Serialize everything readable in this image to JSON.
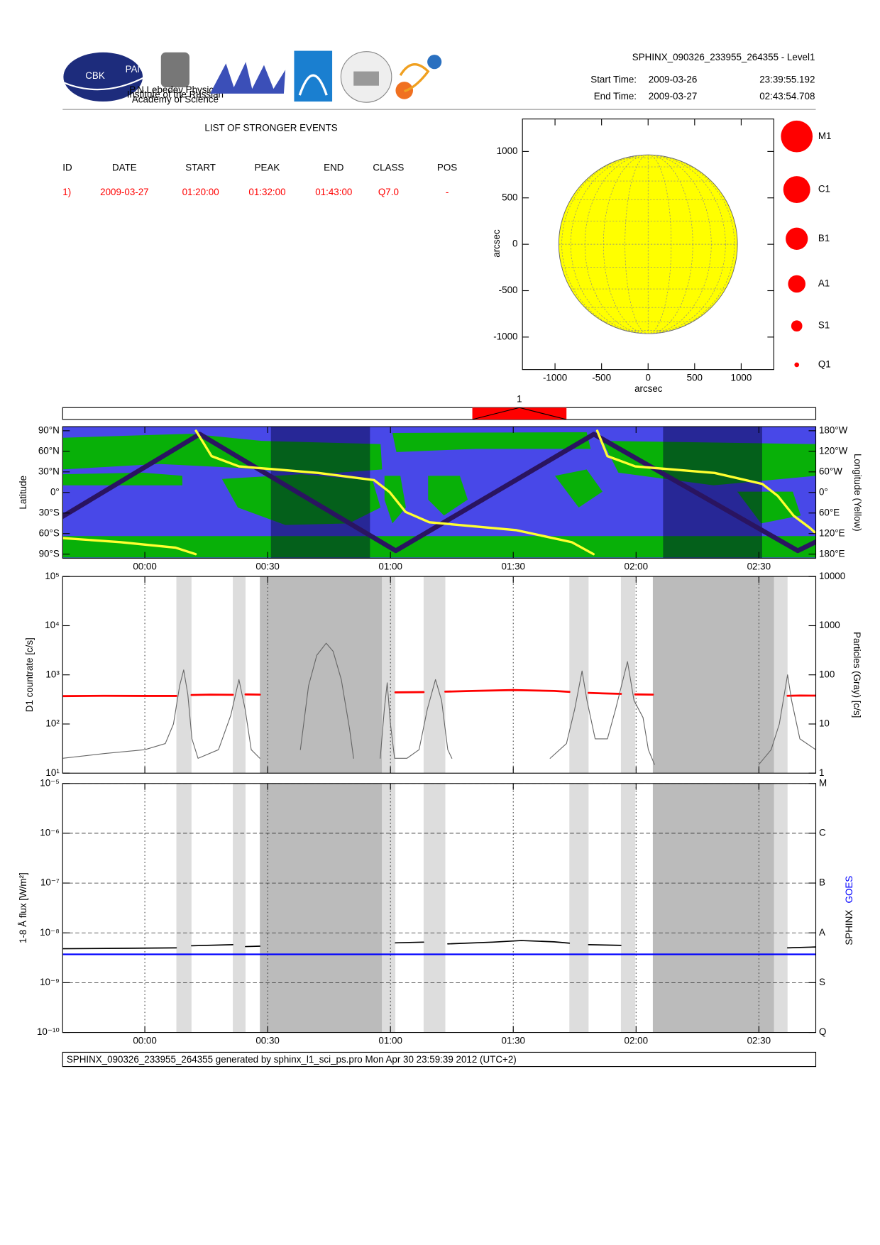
{
  "header": {
    "title": "SPHINX_090326_233955_264355 - Level1",
    "start_label": "Start Time:",
    "start_date": "2009-03-26",
    "start_time": "23:39:55.192",
    "end_label": "End Time:",
    "end_date": "2009-03-27",
    "end_time": "02:43:54.708"
  },
  "logos": {
    "cbk": "CBK",
    "cbk_sub": "PAN",
    "lebedev": [
      "P.N.Lebedev Physical",
      "Institute of the Russian",
      "Academy of Science"
    ]
  },
  "events_table": {
    "title": "LIST OF STRONGER EVENTS",
    "columns": [
      "ID",
      "DATE",
      "START",
      "PEAK",
      "END",
      "CLASS",
      "POS"
    ],
    "rows": [
      [
        "1)",
        "2009-03-27",
        "01:20:00",
        "01:32:00",
        "01:43:00",
        "Q7.0",
        "-"
      ]
    ]
  },
  "class_legend": [
    "M1",
    "C1",
    "B1",
    "A1",
    "S1",
    "Q1"
  ],
  "footer": "SPHINX_090326_233955_264355 generated by sphinx_l1_sci_ps.pro Mon Apr 30 23:59:39 2012 (UTC+2)",
  "chart_data": [
    {
      "type": "disk",
      "xlabel": "arcsec",
      "ylabel": "arcsec",
      "xlim": [
        -1350,
        1350
      ],
      "ylim": [
        -1350,
        1350
      ],
      "xticks": [
        -1000,
        -500,
        0,
        500,
        1000
      ],
      "yticks": [
        -1000,
        -500,
        0,
        500,
        1000
      ],
      "radius": 960,
      "color": "#ffff00"
    },
    {
      "type": "timeline",
      "xlim": [
        -20.08,
        163.9
      ],
      "color": "#ff0000",
      "events": [
        {
          "label": "1",
          "start": 80,
          "end": 103
        }
      ]
    },
    {
      "type": "line",
      "ylabel": "Latitude",
      "y2label": "Longitude (Yellow)",
      "xlim": [
        -20.08,
        163.9
      ],
      "xticks": [
        {
          "value": 0,
          "label": "00:00"
        },
        {
          "value": 30,
          "label": "00:30"
        },
        {
          "value": 60,
          "label": "01:00"
        },
        {
          "value": 90,
          "label": "01:30"
        },
        {
          "value": 120,
          "label": "02:00"
        },
        {
          "value": 150,
          "label": "02:30"
        }
      ],
      "ylim": [
        -96,
        96
      ],
      "yticks": [
        {
          "value": 90,
          "label": "90°N"
        },
        {
          "value": 60,
          "label": "60°N"
        },
        {
          "value": 30,
          "label": "30°N"
        },
        {
          "value": 0,
          "label": "0°"
        },
        {
          "value": -30,
          "label": "30°S"
        },
        {
          "value": -60,
          "label": "60°S"
        },
        {
          "value": -90,
          "label": "90°S"
        }
      ],
      "y2lim": [
        -192,
        192
      ],
      "y2ticks": [
        {
          "value": 180,
          "label": "180°W"
        },
        {
          "value": 120,
          "label": "120°W"
        },
        {
          "value": 60,
          "label": "60°W"
        },
        {
          "value": 0,
          "label": "0°"
        },
        {
          "value": -60,
          "label": "60°E"
        },
        {
          "value": -120,
          "label": "120°E"
        },
        {
          "value": -180,
          "label": "180°E"
        }
      ],
      "shaded_dark": [
        [
          30.8,
          55
        ],
        [
          126.6,
          150.8
        ]
      ],
      "series": [
        {
          "color": "#2a1460",
          "x": [
            -20.08,
            13.4,
            61.3,
            109.7,
            159.5,
            163.9
          ],
          "values": [
            -35,
            85,
            -85,
            85,
            -85,
            -72
          ]
        },
        {
          "color": "#ffff30",
          "axis": "y2",
          "x": [
            -20.08,
            -6,
            7.5,
            12.4,
            null,
            12.5,
            16.3,
            23,
            42.4,
            56,
            59.8,
            63.7,
            69.5,
            90.8,
            104.3,
            109.6,
            null,
            110.5,
            113,
            119.8,
            139.2,
            150.8,
            154.6,
            158.5,
            162.4,
            163.9
          ],
          "values": [
            -133,
            -145,
            -161,
            -180,
            null,
            180,
            106,
            76,
            57,
            36,
            1,
            -57,
            -87,
            -110,
            -145,
            -180,
            null,
            180,
            106,
            76,
            57,
            25,
            -10,
            -68,
            -103,
            -119
          ]
        }
      ]
    },
    {
      "type": "line",
      "log": true,
      "ylabel": "D1 countrate [c/s]",
      "y2label": "Particles (Gray) [c/s]",
      "xlim": [
        -20.08,
        163.9
      ],
      "xticks": [
        0,
        30,
        60,
        90,
        120,
        150
      ],
      "xgrid": true,
      "ylim": [
        10,
        100000
      ],
      "yticks": [
        {
          "value": 10,
          "label": "10¹"
        },
        {
          "value": 100,
          "label": "10²"
        },
        {
          "value": 1000,
          "label": "10³"
        },
        {
          "value": 10000,
          "label": "10⁴"
        },
        {
          "value": 100000,
          "label": "10⁵"
        }
      ],
      "y2lim": [
        1,
        10000
      ],
      "y2ticks": [
        1,
        10,
        100,
        1000,
        10000
      ],
      "shaded_light": [
        [
          7.7,
          11.4
        ],
        [
          21.5,
          24.6
        ],
        [
          57.9,
          61.2
        ],
        [
          68.1,
          73.4
        ],
        [
          103.7,
          108.4
        ],
        [
          116.3,
          119.8
        ],
        [
          153.7,
          157.0
        ]
      ],
      "shaded_dark": [
        [
          28.1,
          57.9
        ],
        [
          124.1,
          153.7
        ]
      ],
      "series": [
        {
          "color": "#ff0000",
          "x": [
            -20.08,
            -10,
            0,
            7.7,
            null,
            11.4,
            16,
            21.5,
            null,
            24.6,
            28.1,
            null,
            61.2,
            68.1,
            null,
            73.4,
            80,
            90,
            100,
            103.7,
            null,
            108.4,
            112,
            116.3,
            null,
            119.8,
            124.1,
            null,
            157,
            160,
            163.9
          ],
          "values": [
            370,
            375,
            372,
            372,
            null,
            390,
            395,
            392,
            null,
            400,
            395,
            null,
            440,
            445,
            null,
            455,
            470,
            490,
            470,
            450,
            null,
            430,
            420,
            410,
            null,
            400,
            395,
            null,
            375,
            380,
            378
          ]
        },
        {
          "color": "#666666",
          "axis": "y2",
          "x": [
            -20.08,
            -10,
            0,
            5,
            7,
            8.5,
            9.5,
            10.5,
            11.5,
            13,
            18,
            21,
            23,
            24.5,
            26,
            28.1,
            null,
            38,
            40,
            42,
            44.3,
            46,
            48,
            50,
            51,
            null,
            57.5,
            58.5,
            59.2,
            60,
            61,
            64,
            67,
            69,
            71,
            72.5,
            74,
            75,
            null,
            99,
            103,
            105,
            106.8,
            108,
            110,
            113,
            115,
            117.9,
            119.5,
            121.7,
            123,
            124.5,
            null,
            150,
            153,
            155,
            157,
            158,
            160,
            163.9
          ],
          "values": [
            2,
            2.5,
            3,
            4,
            10,
            60,
            126,
            40,
            5,
            2,
            3,
            15,
            80,
            20,
            3,
            2,
            null,
            3,
            60,
            250,
            440,
            300,
            80,
            8,
            2,
            null,
            2,
            20,
            69,
            10,
            2,
            2,
            3,
            20,
            80,
            30,
            3,
            2,
            null,
            2,
            4,
            20,
            120,
            30,
            5,
            5,
            20,
            186,
            30,
            13.5,
            3,
            1.5,
            null,
            1.5,
            3,
            10,
            100,
            30,
            5,
            3
          ]
        }
      ]
    },
    {
      "type": "line",
      "log": true,
      "ylabel": "1-8 Å flux [W/m²]",
      "xlim": [
        -20.08,
        163.9
      ],
      "xticks": [
        {
          "value": 0,
          "label": "00:00"
        },
        {
          "value": 30,
          "label": "00:30"
        },
        {
          "value": 60,
          "label": "01:00"
        },
        {
          "value": 90,
          "label": "01:30"
        },
        {
          "value": 120,
          "label": "02:00"
        },
        {
          "value": 150,
          "label": "02:30"
        }
      ],
      "xgrid": true,
      "ygrid": true,
      "ylim": [
        1e-10,
        1e-05
      ],
      "yticks": [
        {
          "value": 1e-10,
          "label": "10⁻¹⁰"
        },
        {
          "value": 1e-09,
          "label": "10⁻⁹"
        },
        {
          "value": 1e-08,
          "label": "10⁻⁸"
        },
        {
          "value": 1e-07,
          "label": "10⁻⁷"
        },
        {
          "value": 1e-06,
          "label": "10⁻⁶"
        },
        {
          "value": 1e-05,
          "label": "10⁻⁵"
        }
      ],
      "y2lim": [
        1e-10,
        1e-05
      ],
      "y2ticks": [
        {
          "value": 1e-10,
          "label": "Q"
        },
        {
          "value": 1e-09,
          "label": "S"
        },
        {
          "value": 1e-08,
          "label": "A"
        },
        {
          "value": 1e-07,
          "label": "B"
        },
        {
          "value": 1e-06,
          "label": "C"
        },
        {
          "value": 1e-05,
          "label": "M"
        }
      ],
      "shaded_light": [
        [
          7.7,
          11.4
        ],
        [
          21.5,
          24.6
        ],
        [
          57.9,
          61.2
        ],
        [
          68.1,
          73.4
        ],
        [
          103.7,
          108.4
        ],
        [
          116.3,
          119.8
        ],
        [
          153.7,
          157.0
        ]
      ],
      "shaded_dark": [
        [
          28.1,
          57.9
        ],
        [
          124.1,
          153.7
        ]
      ],
      "series": [
        {
          "name": "SPHINX",
          "color": "#000000",
          "x": [
            -20.08,
            -5,
            7.7,
            null,
            11.4,
            21.5,
            null,
            24.6,
            28.1,
            null,
            61.2,
            68.1,
            null,
            74,
            85,
            92,
            100,
            103.7,
            null,
            108.4,
            116.3,
            null,
            157,
            163.9
          ],
          "values": [
            4.8e-09,
            4.9e-09,
            5e-09,
            null,
            5.5e-09,
            5.8e-09,
            null,
            5.3e-09,
            5.4e-09,
            null,
            6.3e-09,
            6.5e-09,
            null,
            6e-09,
            6.5e-09,
            7e-09,
            6.6e-09,
            6.2e-09,
            null,
            5.8e-09,
            5.6e-09,
            null,
            5e-09,
            5.2e-09
          ]
        },
        {
          "name": "GOES",
          "color": "#0000ff",
          "x": [
            -20.08,
            163.9
          ],
          "values": [
            3.7e-09,
            3.7e-09
          ]
        }
      ]
    }
  ]
}
